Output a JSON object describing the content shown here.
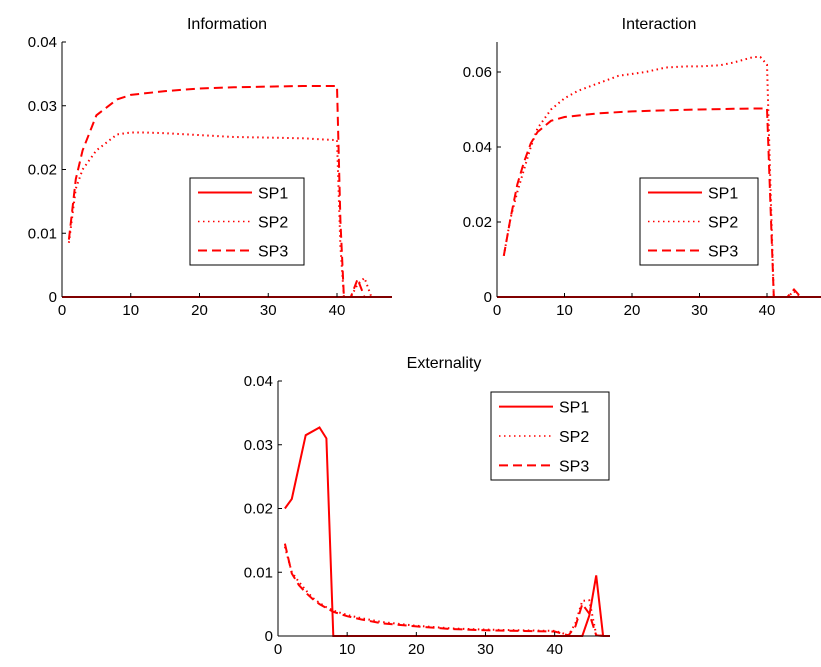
{
  "chart_data": [
    {
      "type": "line",
      "title": "Information",
      "xlabel": "",
      "ylabel": "",
      "xlim": [
        0,
        48
      ],
      "ylim": [
        0,
        0.04
      ],
      "xticks": [
        0,
        10,
        20,
        30,
        40
      ],
      "xtick_labels": [
        "0",
        "10",
        "20",
        "30",
        "40"
      ],
      "yticks": [
        0,
        0.01,
        0.02,
        0.03,
        0.04
      ],
      "ytick_labels": [
        "0",
        "0.01",
        "0.02",
        "0.03",
        "0.04"
      ],
      "grid": false,
      "legend_position": "center-right",
      "color": "#ff0000",
      "series": [
        {
          "name": "SP1",
          "style": "solid",
          "x": [
            0,
            48
          ],
          "y": [
            0,
            0
          ]
        },
        {
          "name": "SP2",
          "style": "dotted",
          "x": [
            1,
            2,
            3,
            5,
            8,
            10,
            12,
            15,
            20,
            25,
            30,
            35,
            40,
            40.5,
            41,
            42,
            43,
            44,
            45
          ],
          "y": [
            0.0085,
            0.017,
            0.02,
            0.023,
            0.0255,
            0.0258,
            0.0258,
            0.0257,
            0.0254,
            0.0251,
            0.025,
            0.0249,
            0.0246,
            0.008,
            0,
            0,
            0.002,
            0.003,
            0
          ]
        },
        {
          "name": "SP3",
          "style": "dashed",
          "x": [
            1,
            2,
            3,
            5,
            8,
            10,
            15,
            20,
            25,
            30,
            35,
            40,
            40.5,
            41,
            42,
            43,
            44,
            45
          ],
          "y": [
            0.009,
            0.0185,
            0.023,
            0.0285,
            0.031,
            0.0317,
            0.0323,
            0.0327,
            0.0329,
            0.033,
            0.0331,
            0.0331,
            0.012,
            0,
            0,
            0.0028,
            0,
            0
          ]
        }
      ]
    },
    {
      "type": "line",
      "title": "Interaction",
      "xlabel": "",
      "ylabel": "",
      "xlim": [
        0,
        48
      ],
      "ylim": [
        0,
        0.068
      ],
      "xticks": [
        0,
        10,
        20,
        30,
        40
      ],
      "xtick_labels": [
        "0",
        "10",
        "20",
        "30",
        "40"
      ],
      "yticks": [
        0,
        0.02,
        0.04,
        0.06
      ],
      "ytick_labels": [
        "0",
        "0.02",
        "0.04",
        "0.06"
      ],
      "grid": false,
      "legend_position": "center-right",
      "color": "#ff0000",
      "series": [
        {
          "name": "SP1",
          "style": "solid",
          "x": [
            0,
            48
          ],
          "y": [
            0,
            0
          ]
        },
        {
          "name": "SP2",
          "style": "dotted",
          "x": [
            1,
            2,
            3,
            4,
            5,
            6,
            8,
            10,
            12,
            15,
            18,
            20,
            22,
            25,
            28,
            30,
            33,
            35,
            38,
            39,
            40,
            40.5,
            41,
            42,
            43,
            44,
            45
          ],
          "y": [
            0.011,
            0.021,
            0.028,
            0.034,
            0.04,
            0.045,
            0.05,
            0.053,
            0.055,
            0.057,
            0.059,
            0.0595,
            0.06,
            0.0612,
            0.0615,
            0.0615,
            0.0618,
            0.0625,
            0.064,
            0.064,
            0.062,
            0.03,
            0,
            0,
            0,
            0.0015,
            0
          ]
        },
        {
          "name": "SP3",
          "style": "dashed",
          "x": [
            1,
            2,
            3,
            4,
            5,
            6,
            8,
            10,
            15,
            20,
            25,
            30,
            35,
            40,
            40.5,
            41,
            42,
            43,
            44,
            45
          ],
          "y": [
            0.011,
            0.021,
            0.03,
            0.036,
            0.041,
            0.044,
            0.047,
            0.048,
            0.049,
            0.0495,
            0.0498,
            0.05,
            0.0502,
            0.0503,
            0.025,
            0,
            0,
            0,
            0.002,
            0
          ]
        }
      ]
    },
    {
      "type": "line",
      "title": "Externality",
      "xlabel": "",
      "ylabel": "",
      "xlim": [
        0,
        48
      ],
      "ylim": [
        0,
        0.04
      ],
      "xticks": [
        0,
        10,
        20,
        30,
        40
      ],
      "xtick_labels": [
        "0",
        "10",
        "20",
        "30",
        "40"
      ],
      "yticks": [
        0,
        0.01,
        0.02,
        0.03,
        0.04
      ],
      "ytick_labels": [
        "0",
        "0.01",
        "0.02",
        "0.03",
        "0.04"
      ],
      "grid": false,
      "legend_position": "top-right",
      "color": "#ff0000",
      "series": [
        {
          "name": "SP1",
          "style": "solid",
          "x": [
            1,
            2,
            4,
            6,
            7,
            8,
            9,
            20,
            44,
            45,
            46,
            47,
            48
          ],
          "y": [
            0.02,
            0.0215,
            0.0315,
            0.0327,
            0.031,
            0,
            0,
            0,
            0,
            0.0032,
            0.0095,
            0,
            0
          ]
        },
        {
          "name": "SP2",
          "style": "dotted",
          "x": [
            1,
            2,
            3,
            4,
            5,
            6,
            7,
            8,
            10,
            12,
            15,
            20,
            25,
            30,
            35,
            40,
            41,
            42,
            43,
            44,
            45,
            46,
            47
          ],
          "y": [
            0.014,
            0.01,
            0.0085,
            0.0072,
            0.006,
            0.0052,
            0.0045,
            0.004,
            0.0033,
            0.0028,
            0.0022,
            0.0016,
            0.0012,
            0.001,
            0.0009,
            0.0008,
            0.0005,
            0.0001,
            0.002,
            0.0055,
            0.0056,
            0.0002,
            0
          ]
        },
        {
          "name": "SP3",
          "style": "dashed",
          "x": [
            1,
            2,
            3,
            4,
            5,
            6,
            7,
            8,
            10,
            12,
            15,
            20,
            25,
            30,
            35,
            40,
            41,
            42,
            43,
            44,
            45,
            46,
            47
          ],
          "y": [
            0.0145,
            0.0098,
            0.008,
            0.0068,
            0.0058,
            0.005,
            0.0044,
            0.0038,
            0.0031,
            0.0026,
            0.002,
            0.0015,
            0.0011,
            0.0009,
            0.0008,
            0.0007,
            0.0004,
            0.0001,
            0.0015,
            0.005,
            0.0035,
            0.0001,
            0
          ]
        }
      ]
    }
  ]
}
